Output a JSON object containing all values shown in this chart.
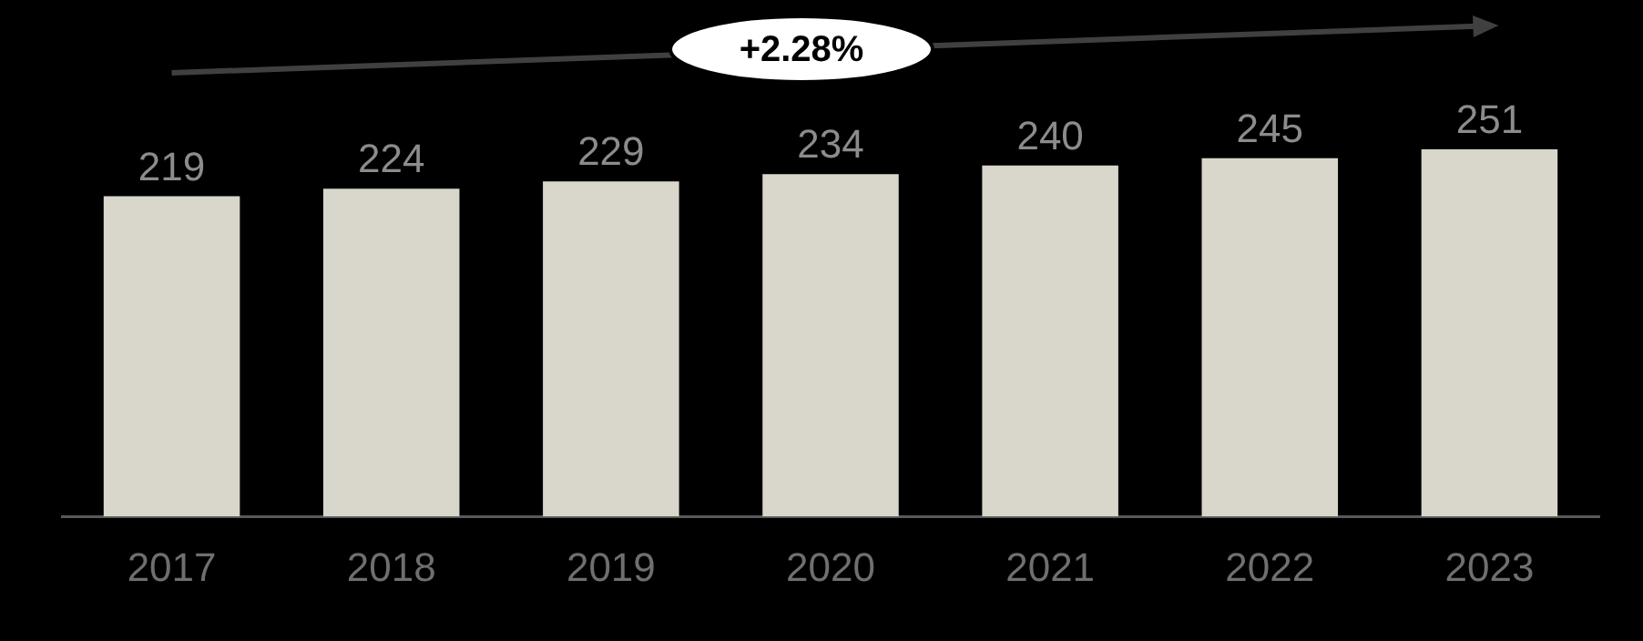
{
  "chart_data": {
    "type": "bar",
    "categories": [
      "2017",
      "2018",
      "2019",
      "2020",
      "2021",
      "2022",
      "2023"
    ],
    "values": [
      219,
      224,
      229,
      234,
      240,
      245,
      251
    ],
    "color": "#d9d7cc",
    "data_labels": true,
    "grid": false,
    "legend": false,
    "annotations": [
      "+2.28%"
    ]
  }
}
